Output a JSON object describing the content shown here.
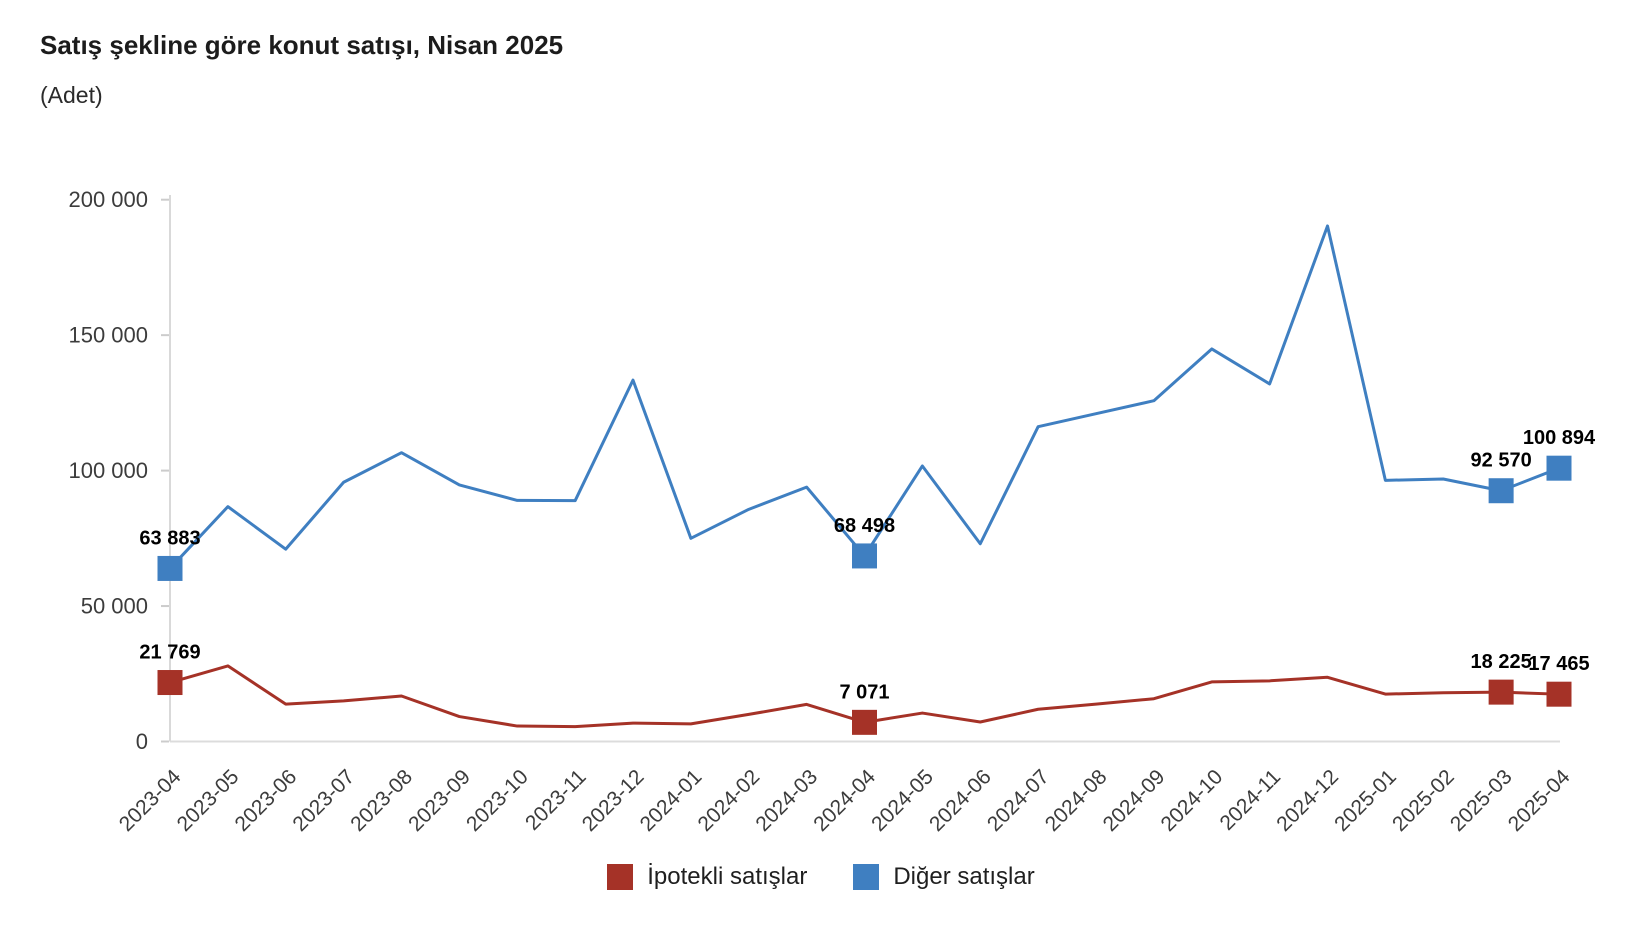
{
  "header": {
    "title": "Satış şekline göre konut satışı, Nisan 2025",
    "subtitle": "(Adet)"
  },
  "chart_data": {
    "type": "line",
    "categories": [
      "2023-04",
      "2023-05",
      "2023-06",
      "2023-07",
      "2023-08",
      "2023-09",
      "2023-10",
      "2023-11",
      "2023-12",
      "2024-01",
      "2024-02",
      "2024-03",
      "2024-04",
      "2024-05",
      "2024-06",
      "2024-07",
      "2024-08",
      "2024-09",
      "2024-10",
      "2024-11",
      "2024-12",
      "2025-01",
      "2025-02",
      "2025-03",
      "2025-04"
    ],
    "series": [
      {
        "id": "ipotekli-satislar",
        "name": "İpotekli satışlar",
        "color": "#a53227",
        "values": [
          21769,
          27900,
          13800,
          15000,
          16800,
          9200,
          5700,
          5500,
          6800,
          6500,
          10000,
          13700,
          7071,
          10500,
          7200,
          11900,
          13800,
          15800,
          22000,
          22400,
          23700,
          17500,
          18000,
          18225,
          17465
        ],
        "markers": [
          {
            "index": 0,
            "label": "21 769"
          },
          {
            "index": 12,
            "label": "7 071"
          },
          {
            "index": 23,
            "label": "18 225"
          },
          {
            "index": 24,
            "label": "17 465"
          }
        ]
      },
      {
        "id": "diger-satislar",
        "name": "Diğer satışlar",
        "color": "#3f7fc1",
        "values": [
          63883,
          86700,
          71000,
          95700,
          106600,
          94700,
          89000,
          88900,
          133400,
          75000,
          85700,
          93900,
          68498,
          101700,
          73000,
          116200,
          121000,
          125800,
          144900,
          132000,
          190300,
          96400,
          96900,
          92570,
          100894
        ],
        "markers": [
          {
            "index": 0,
            "label": "63 883"
          },
          {
            "index": 12,
            "label": "68 498"
          },
          {
            "index": 23,
            "label": "92 570"
          },
          {
            "index": 24,
            "label": "100 894"
          }
        ]
      }
    ],
    "ylim": [
      0,
      200000
    ],
    "yticks": [
      {
        "value": 0,
        "label": "0"
      },
      {
        "value": 50000,
        "label": "50 000"
      },
      {
        "value": 100000,
        "label": "100 000"
      },
      {
        "value": 150000,
        "label": "150 000"
      },
      {
        "value": 200000,
        "label": "200 000"
      }
    ],
    "xlabel": "",
    "ylabel": "",
    "grid": "off",
    "legend_position": "bottom"
  }
}
